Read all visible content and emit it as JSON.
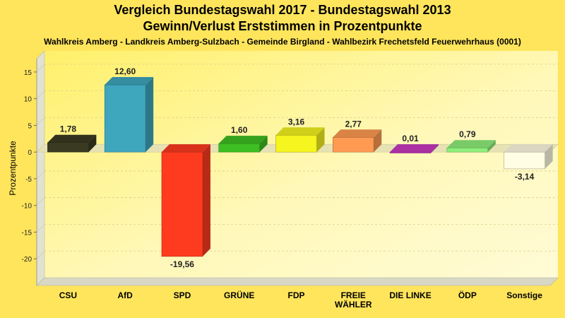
{
  "chart_data": {
    "type": "bar",
    "title": "Vergleich Bundestagswahl 2017 - Bundestagswahl 2013",
    "subtitle": "Gewinn/Verlust Erststimmen in Prozentpunkte",
    "caption": "Wahlkreis Amberg - Landkreis Amberg-Sulzbach - Gemeinde Birgland - Wahlbezirk Frechetsfeld Feuerwehrhaus (0001)",
    "ylabel": "Prozentpunkte",
    "ylim": [
      -25,
      17.5
    ],
    "yticks": [
      15,
      10,
      5,
      0,
      -5,
      -10,
      -15,
      -20
    ],
    "ytick_labels": [
      "15",
      "10",
      "5",
      "0",
      "-5",
      "-10",
      "-15",
      "-20"
    ],
    "grid": true,
    "categories": [
      "CSU",
      "AfD",
      "SPD",
      "GRÜNE",
      "FDP",
      "FREIE WÄHLER",
      "DIE LINKE",
      "ÖDP",
      "Sonstige"
    ],
    "category_lines": [
      [
        "CSU"
      ],
      [
        "AfD"
      ],
      [
        "SPD"
      ],
      [
        "GRÜNE"
      ],
      [
        "FDP"
      ],
      [
        "FREIE",
        "WÄHLER"
      ],
      [
        "DIE LINKE"
      ],
      [
        "ÖDP"
      ],
      [
        "Sonstige"
      ]
    ],
    "values": [
      1.78,
      12.6,
      -19.56,
      1.6,
      3.16,
      2.77,
      0.01,
      0.79,
      -3.14
    ],
    "value_labels": [
      "1,78",
      "12,60",
      "-19,56",
      "1,60",
      "3,16",
      "2,77",
      "0,01",
      "0,79",
      "-3,14"
    ],
    "colors": [
      "#3A3A22",
      "#3EA6BD",
      "#FF3B1F",
      "#3DBE22",
      "#F5F51F",
      "#FF9A52",
      "#C838C0",
      "#8EEF7A",
      "#FFFDE4"
    ]
  }
}
